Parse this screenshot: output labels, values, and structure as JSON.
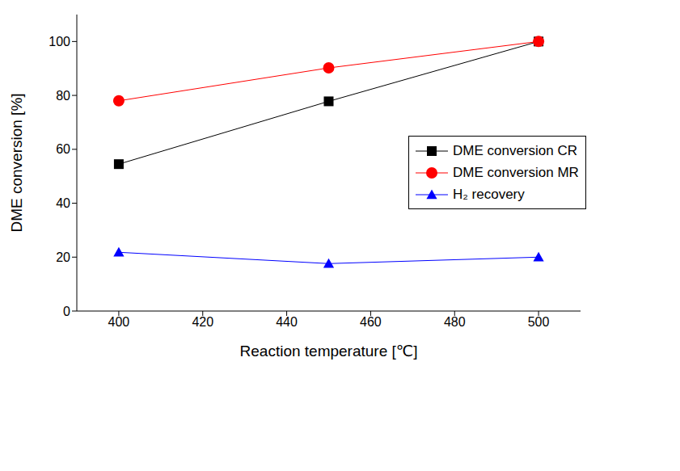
{
  "chart_data": {
    "type": "line",
    "x_label": "Reaction temperature [℃]",
    "y_label": "DME conversion [%]",
    "x": [
      400,
      450,
      500
    ],
    "series": [
      {
        "name": "DME conversion CR",
        "color": "#000000",
        "marker": "square",
        "values": [
          54.5,
          77.8,
          100
        ]
      },
      {
        "name": "DME conversion MR",
        "color": "#ff0000",
        "marker": "circle",
        "values": [
          78,
          90.2,
          100
        ]
      },
      {
        "name": "H₂ recovery",
        "color": "#0000ff",
        "marker": "triangle",
        "values": [
          21.8,
          17.6,
          20
        ]
      }
    ],
    "xlim": [
      390,
      510
    ],
    "xticks": [
      400,
      420,
      440,
      460,
      480,
      500
    ],
    "ylim": [
      0,
      110
    ],
    "yticks": [
      0,
      20,
      40,
      60,
      80,
      100
    ],
    "legend": "right",
    "grid": false
  }
}
